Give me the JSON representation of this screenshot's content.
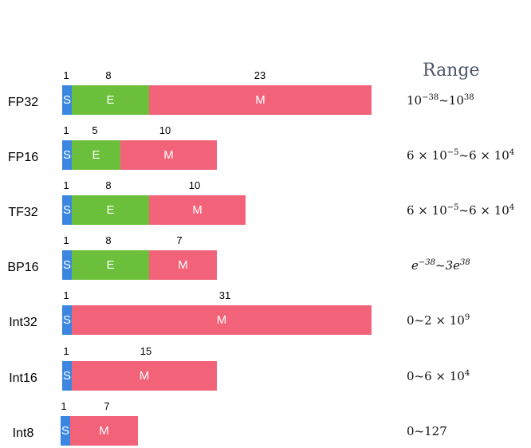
{
  "range_title": "Range",
  "colors": {
    "sign": "#3a86e0",
    "exponent": "#6bbf3a",
    "mantissa": "#f2637a"
  },
  "formats": [
    {
      "name": "FP32",
      "s_label": "S",
      "e_label": "E",
      "m_label": "M",
      "sign_bits": "1",
      "exp_bits": "8",
      "man_bits": "23",
      "range": {
        "pre": "10",
        "sup1": "−38",
        "mid": "~10",
        "sup2": "38",
        "post": ""
      }
    },
    {
      "name": "FP16",
      "s_label": "S",
      "e_label": "E",
      "m_label": "M",
      "sign_bits": "1",
      "exp_bits": "5",
      "man_bits": "10",
      "range": {
        "pre": "6 × 10",
        "sup1": "−5",
        "mid": "~6 × 10",
        "sup2": "4",
        "post": ""
      }
    },
    {
      "name": "TF32",
      "s_label": "S",
      "e_label": "E",
      "m_label": "M",
      "sign_bits": "1",
      "exp_bits": "8",
      "man_bits": "10",
      "range": {
        "pre": "6 × 10",
        "sup1": "−5",
        "mid": "~6 × 10",
        "sup2": "4",
        "post": ""
      }
    },
    {
      "name": "BP16",
      "s_label": "S",
      "e_label": "E",
      "m_label": "M",
      "sign_bits": "1",
      "exp_bits": "8",
      "man_bits": "7",
      "range": {
        "pre": "e",
        "sup1": "−38",
        "mid": "~3e",
        "sup2": "38",
        "post": ""
      }
    },
    {
      "name": "Int32",
      "s_label": "S",
      "e_label": "",
      "m_label": "M",
      "sign_bits": "1",
      "exp_bits": "",
      "man_bits": "31",
      "range": {
        "pre": "0~2 × 10",
        "sup1": "9",
        "mid": "",
        "sup2": "",
        "post": ""
      }
    },
    {
      "name": "Int16",
      "s_label": "S",
      "e_label": "",
      "m_label": "M",
      "sign_bits": "1",
      "exp_bits": "",
      "man_bits": "15",
      "range": {
        "pre": "0~6 × 10",
        "sup1": "4",
        "mid": "",
        "sup2": "",
        "post": ""
      }
    },
    {
      "name": "Int8",
      "s_label": "S",
      "e_label": "",
      "m_label": "M",
      "sign_bits": "1",
      "exp_bits": "",
      "man_bits": "7",
      "range": {
        "pre": "0~127",
        "sup1": "",
        "mid": "",
        "sup2": "",
        "post": ""
      }
    }
  ]
}
